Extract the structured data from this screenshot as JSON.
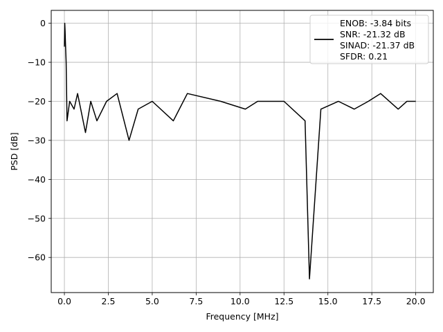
{
  "chart_data": {
    "type": "line",
    "xlabel": "Frequency [MHz]",
    "ylabel": "PSD [dB]",
    "xlim": [
      -0.75,
      21.0
    ],
    "ylim": [
      -69.0,
      3.3
    ],
    "xticks": [
      0.0,
      2.5,
      5.0,
      7.5,
      10.0,
      12.5,
      15.0,
      17.5,
      20.0
    ],
    "xtick_labels": [
      "0.0",
      "2.5",
      "5.0",
      "7.5",
      "10.0",
      "12.5",
      "15.0",
      "17.5",
      "20.0"
    ],
    "yticks": [
      0,
      -10,
      -20,
      -30,
      -40,
      -50,
      -60
    ],
    "ytick_labels": [
      "0",
      "−10",
      "−20",
      "−30",
      "−40",
      "−50",
      "−60"
    ],
    "grid": true,
    "legend_position": "top-right",
    "legend_lines": [
      "ENOB: -3.84 bits",
      "SNR: -21.32 dB",
      "SINAD: -21.37 dB",
      "SFDR: 0.21"
    ],
    "series": [
      {
        "color": "#000000",
        "x": [
          0.0,
          0.02,
          0.04,
          0.06,
          0.1,
          0.15,
          0.3,
          0.55,
          0.75,
          1.2,
          1.5,
          1.85,
          2.4,
          3.0,
          3.68,
          4.2,
          5.0,
          6.2,
          7.0,
          8.9,
          10.3,
          11.0,
          12.5,
          13.7,
          13.95,
          14.6,
          15.6,
          16.5,
          17.3,
          18.0,
          19.0,
          19.5,
          20.0
        ],
        "y": [
          -6,
          0,
          -2,
          -5,
          -10,
          -25,
          -20,
          -22,
          -18,
          -28,
          -20,
          -25,
          -20,
          -18,
          -30,
          -22,
          -20,
          -25,
          -18,
          -20,
          -22,
          -20,
          -20,
          -25,
          -65.5,
          -22,
          -20,
          -22,
          -20,
          -18,
          -22,
          -20,
          -20
        ]
      }
    ]
  }
}
